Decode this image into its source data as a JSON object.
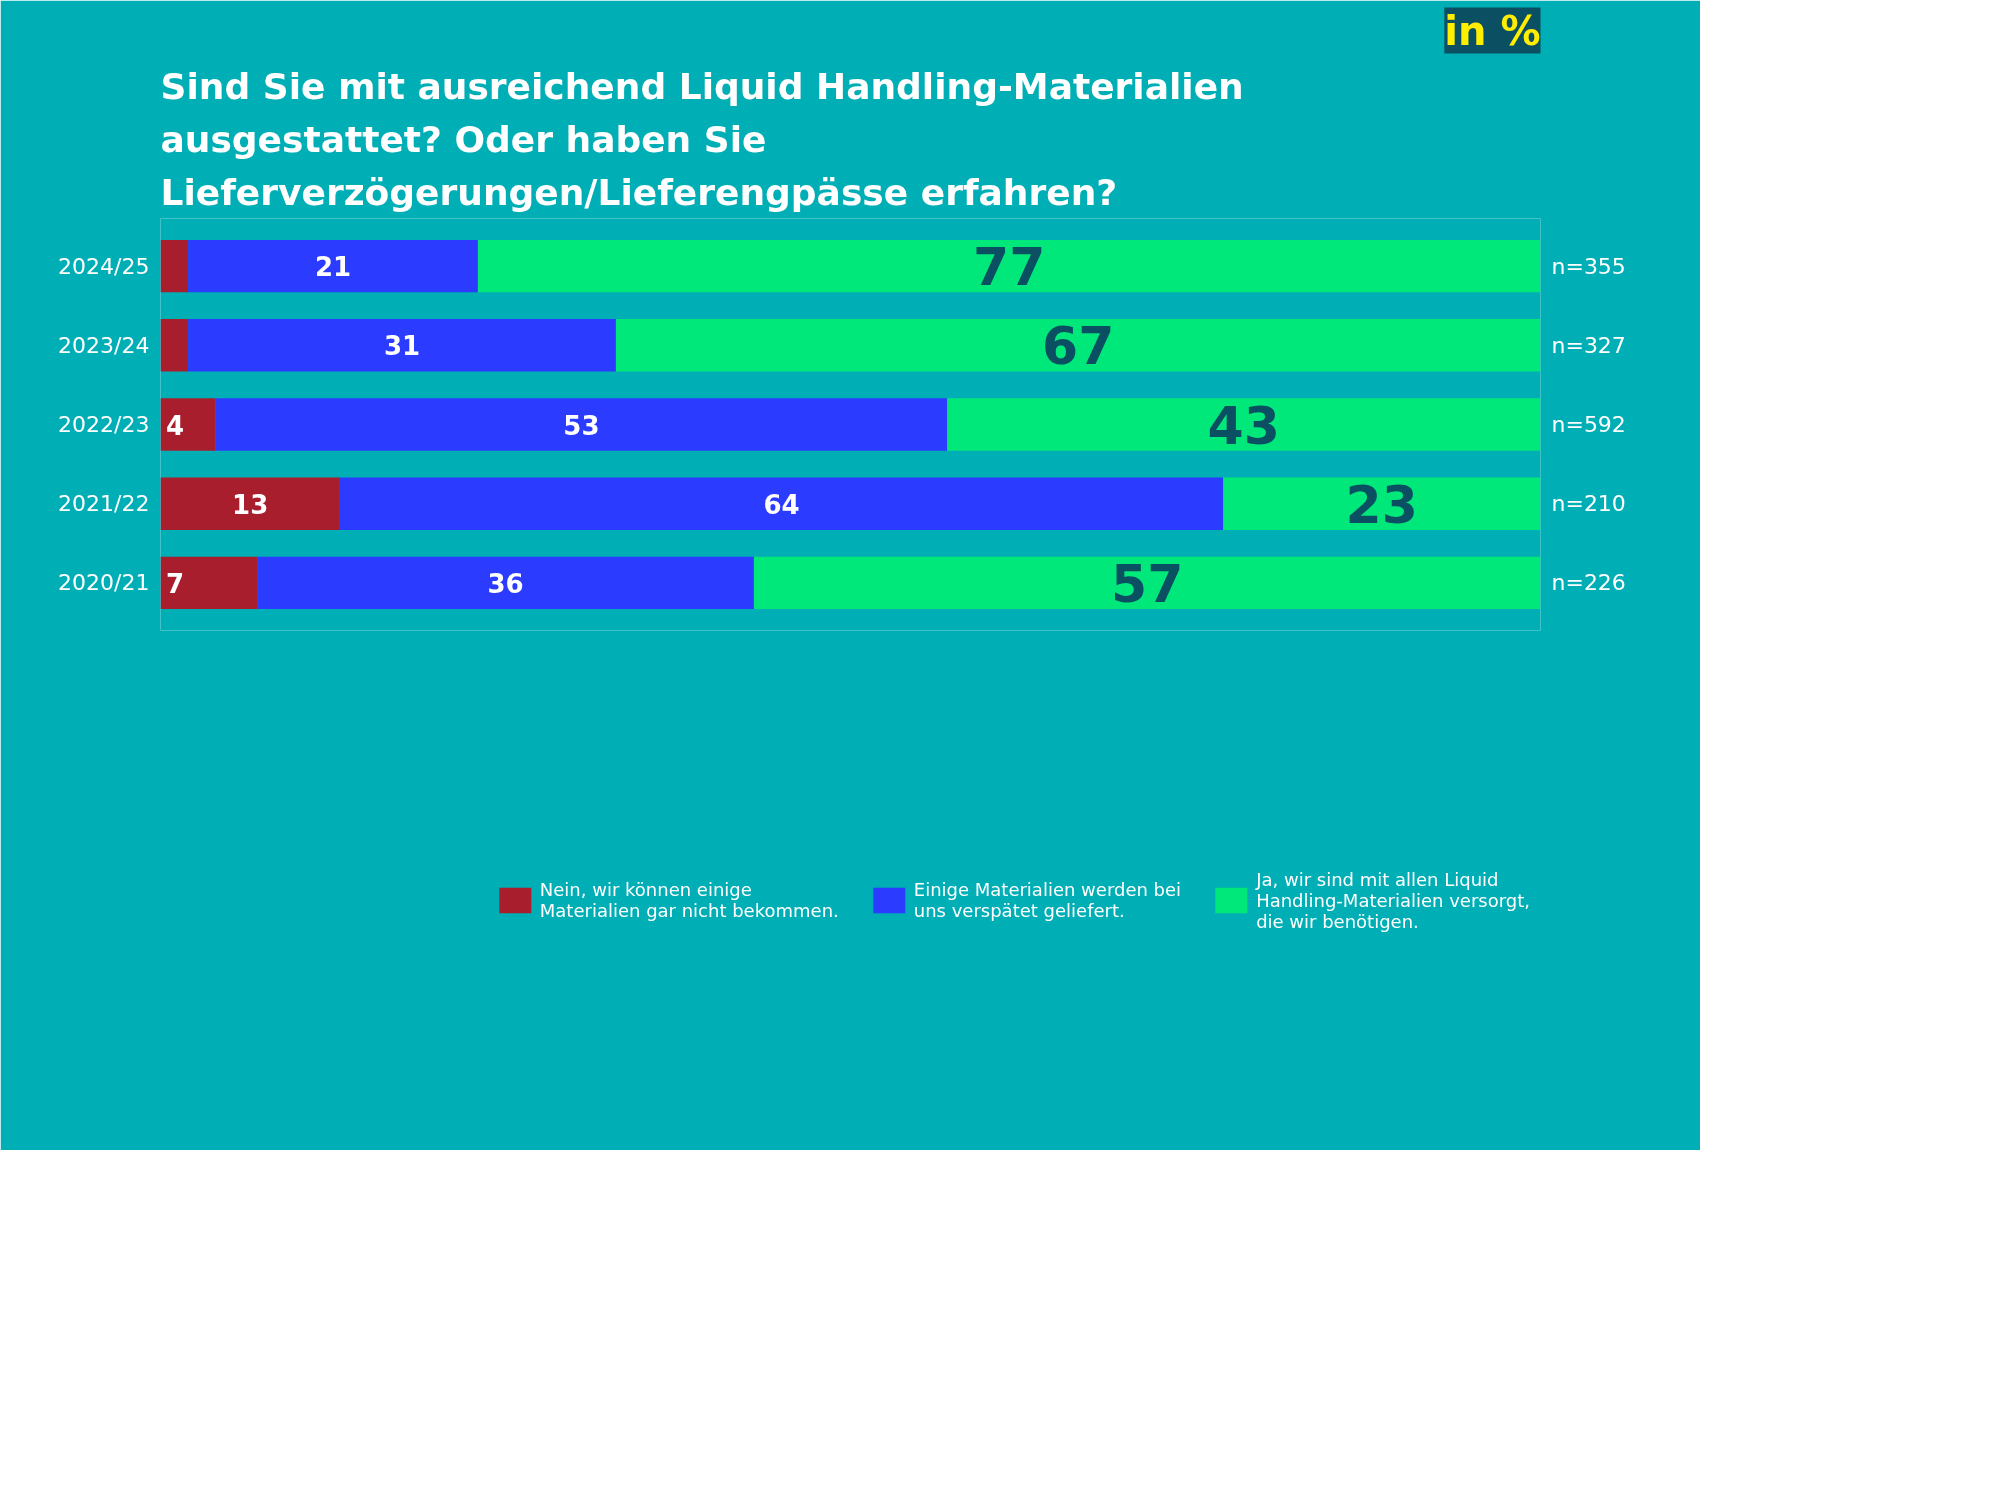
{
  "chart_data": {
    "type": "bar",
    "orientation": "horizontal",
    "stacked": true,
    "title": "Sind Sie mit ausreichend Liquid Handling-Materialien ausgestattet? Oder haben Sie Lieferverzögerungen/Lieferengpässe erfahren?",
    "subtitle": "in %",
    "categories": [
      "2024/25",
      "2023/24",
      "2022/23",
      "2021/22",
      "2020/21"
    ],
    "series": [
      {
        "name": "Nein, wir können einige Materialien gar nicht bekommen.",
        "color": "#a91e2c",
        "values": [
          2,
          2,
          4,
          13,
          7
        ],
        "value_labels": [
          null,
          null,
          "4",
          "13",
          "7"
        ]
      },
      {
        "name": "Einige Materialien werden bei uns verspätet geliefert.",
        "color": "#2b3bff",
        "values": [
          21,
          31,
          53,
          64,
          36
        ],
        "value_labels": [
          "21",
          "31",
          "53",
          "64",
          "36"
        ]
      },
      {
        "name": "Ja, wir sind mit allen Liquid Handling-Materialien versorgt, die wir benötigen.",
        "color": "#00e87a",
        "values": [
          77,
          67,
          43,
          23,
          57
        ],
        "value_labels": [
          "77",
          "67",
          "43",
          "23",
          "57"
        ]
      }
    ],
    "annotations": [
      "n=355",
      "n=327",
      "n=592",
      "n=210",
      "n=226"
    ],
    "xlim": [
      0,
      100
    ],
    "tick_labels": "y",
    "grid": false,
    "legend": "bottom"
  }
}
